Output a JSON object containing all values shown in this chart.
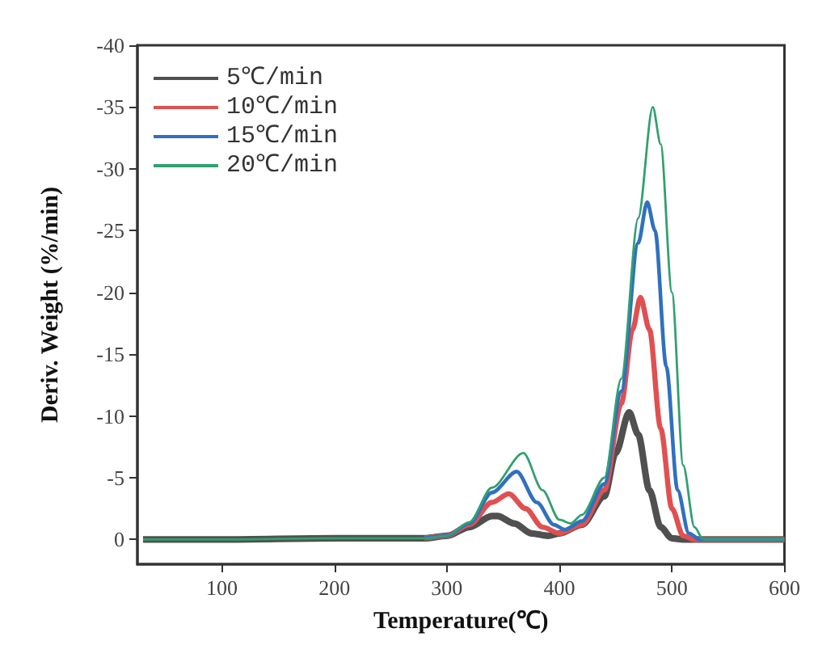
{
  "chart_data": {
    "type": "line",
    "xlabel": "Temperature(℃)",
    "ylabel": "Deriv. Weight (%/min)",
    "xlim": [
      25,
      600
    ],
    "xticks": [
      100,
      200,
      300,
      400,
      500,
      600
    ],
    "ylim": [
      2,
      -40
    ],
    "yticks": [
      0,
      -5,
      -10,
      -15,
      -20,
      -25,
      -30,
      -35,
      -40
    ],
    "grid": false,
    "legend": "top left",
    "marker": "none",
    "line_style": "solid",
    "series": [
      {
        "name": "5℃/min",
        "color": "#505050",
        "x": [
          30,
          100,
          200,
          280,
          300,
          320,
          340,
          345,
          360,
          375,
          390,
          400,
          420,
          440,
          450,
          462,
          470,
          480,
          490,
          500,
          510,
          600
        ],
        "values": [
          0,
          0,
          -0.1,
          -0.1,
          -0.3,
          -1,
          -1.9,
          -1.9,
          -1.3,
          -0.5,
          -0.3,
          -0.5,
          -1.2,
          -3.5,
          -7,
          -10.3,
          -8.5,
          -4,
          -1,
          -0.1,
          0,
          0
        ]
      },
      {
        "name": "10℃/min",
        "color": "#e05050",
        "x": [
          280,
          300,
          320,
          340,
          355,
          370,
          385,
          400,
          420,
          440,
          455,
          465,
          472,
          480,
          490,
          500,
          510,
          520,
          600
        ],
        "values": [
          -0.1,
          -0.3,
          -1.2,
          -3,
          -3.7,
          -2.5,
          -1,
          -0.5,
          -1.2,
          -4,
          -11,
          -17,
          -19.6,
          -17,
          -9,
          -2.5,
          -0.3,
          0,
          0
        ]
      },
      {
        "name": "15℃/min",
        "color": "#3070c0",
        "x": [
          280,
          300,
          320,
          340,
          362,
          380,
          395,
          405,
          420,
          440,
          455,
          470,
          478,
          485,
          495,
          505,
          515,
          525,
          600
        ],
        "values": [
          -0.1,
          -0.3,
          -1.3,
          -3.8,
          -5.5,
          -3,
          -1.2,
          -0.8,
          -1.5,
          -4.5,
          -12,
          -24,
          -27.3,
          -25,
          -14,
          -4,
          -0.5,
          0,
          0
        ]
      },
      {
        "name": "20℃/min",
        "color": "#30a070",
        "x": [
          30,
          100,
          200,
          280,
          300,
          320,
          340,
          368,
          385,
          400,
          410,
          420,
          440,
          455,
          470,
          483,
          490,
          500,
          510,
          520,
          528,
          600
        ],
        "values": [
          0,
          0,
          -0.1,
          -0.1,
          -0.3,
          -1.4,
          -4.2,
          -7,
          -4,
          -1.6,
          -1.3,
          -2,
          -5,
          -13,
          -26,
          -35,
          -32,
          -20,
          -6,
          -1,
          0,
          0
        ]
      }
    ]
  }
}
